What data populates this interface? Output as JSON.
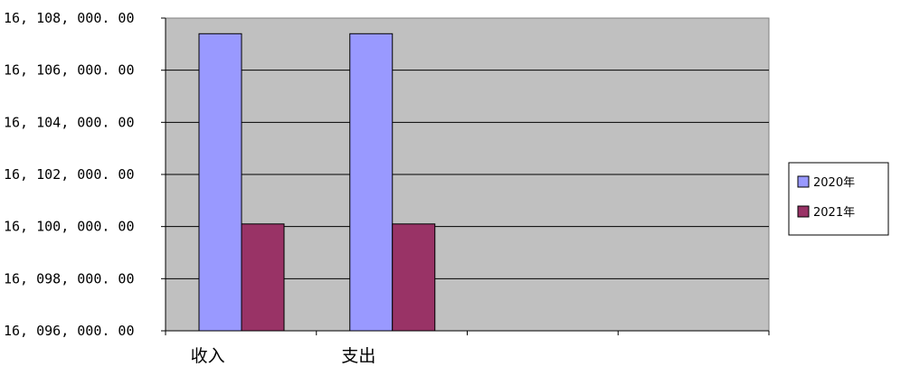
{
  "chart_data": {
    "type": "bar",
    "categories": [
      "收入",
      "支出",
      "",
      ""
    ],
    "series": [
      {
        "name": "2020年",
        "values": [
          16107400,
          16107400,
          null,
          null
        ],
        "color": "#9999FF"
      },
      {
        "name": "2021年",
        "values": [
          16100100,
          16100100,
          null,
          null
        ],
        "color": "#993366"
      }
    ],
    "ylim": [
      16096000,
      16108000
    ],
    "yticks": [
      "16, 108, 000. 00",
      "16, 106, 000. 00",
      "16, 104, 000. 00",
      "16, 102, 000. 00",
      "16, 100, 000. 00",
      "16, 098, 000. 00",
      "16, 096, 000. 00"
    ],
    "plot_background": "#C0C0C0",
    "gridlines": true,
    "legend_position": "right"
  }
}
